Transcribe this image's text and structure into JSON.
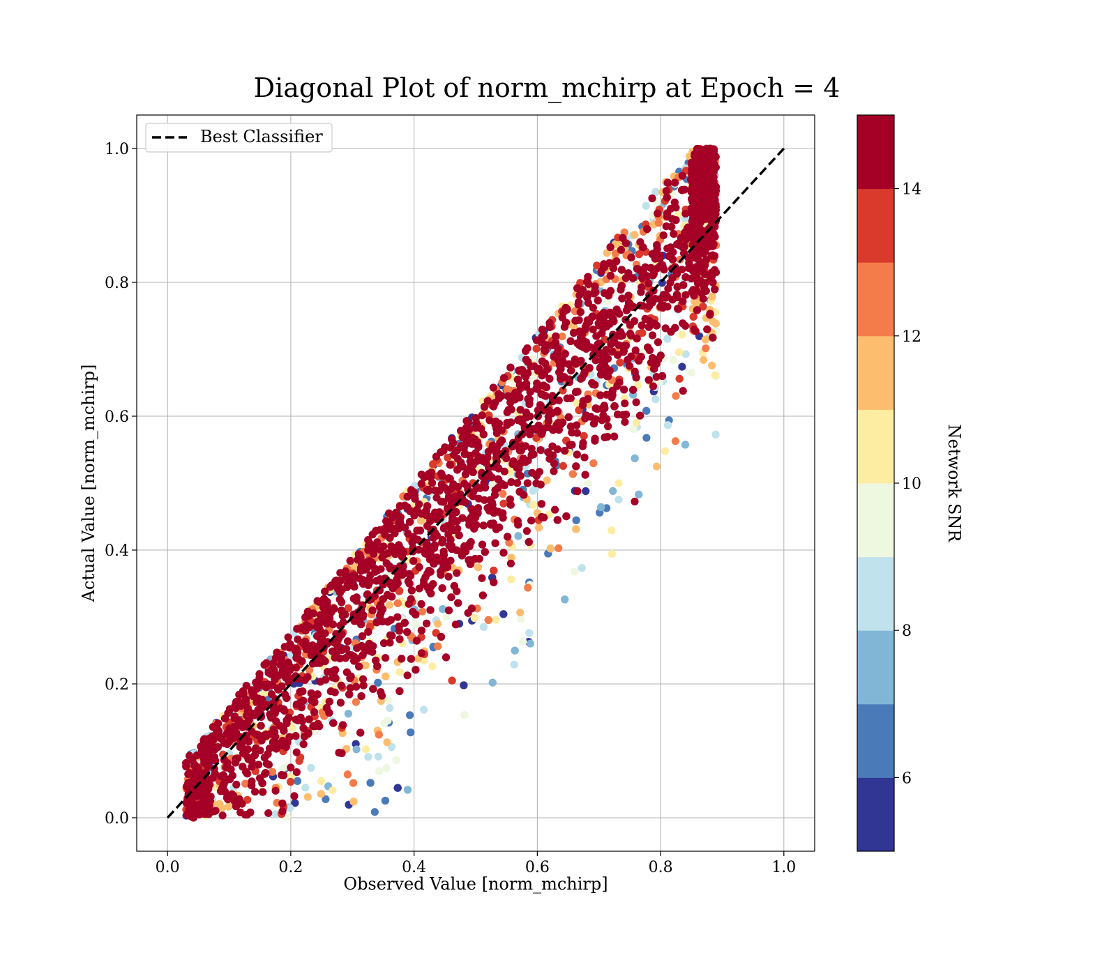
{
  "chart_data": {
    "type": "scatter",
    "title": "Diagonal Plot of norm_mchirp at Epoch = 4",
    "xlabel": "Observed Value [norm_mchirp]",
    "ylabel": "Actual Value [norm_mchirp]",
    "xlim": [
      -0.05,
      1.05
    ],
    "ylim": [
      -0.05,
      1.05
    ],
    "xticks": [
      0.0,
      0.2,
      0.4,
      0.6,
      0.8,
      1.0
    ],
    "yticks": [
      0.0,
      0.2,
      0.4,
      0.6,
      0.8,
      1.0
    ],
    "grid": true,
    "legend": {
      "location": "upper-left",
      "entries": [
        {
          "label": "Best Classifier",
          "style": "dashed",
          "color": "#000000"
        }
      ]
    },
    "reference_line": {
      "name": "Best Classifier",
      "x": [
        0.0,
        1.0
      ],
      "y": [
        0.0,
        1.0
      ]
    },
    "colorbar": {
      "label": "Network SNR",
      "range": [
        5.0,
        15.0
      ],
      "ticks": [
        6,
        8,
        10,
        12,
        14
      ],
      "bins": [
        {
          "from": 5,
          "to": 6,
          "color": "#313695"
        },
        {
          "from": 6,
          "to": 7,
          "color": "#4a7ab7"
        },
        {
          "from": 7,
          "to": 8,
          "color": "#81b6d6"
        },
        {
          "from": 8,
          "to": 9,
          "color": "#bfe2ed"
        },
        {
          "from": 9,
          "to": 10,
          "color": "#eef7e0"
        },
        {
          "from": 10,
          "to": 11,
          "color": "#fdeda2"
        },
        {
          "from": 11,
          "to": 12,
          "color": "#fcbe6e"
        },
        {
          "from": 12,
          "to": 13,
          "color": "#f47c4b"
        },
        {
          "from": 13,
          "to": 14,
          "color": "#d93a2b"
        },
        {
          "from": 14,
          "to": 15,
          "color": "#a50026"
        }
      ]
    },
    "scatter_distribution": {
      "description_values": "points concentrate along y=x within roughly ±0.2; high SNR (≥14) near diagonal, low SNR spread farther",
      "x_range": [
        0.03,
        0.89
      ],
      "y_range": [
        0.0,
        1.0
      ]
    }
  }
}
